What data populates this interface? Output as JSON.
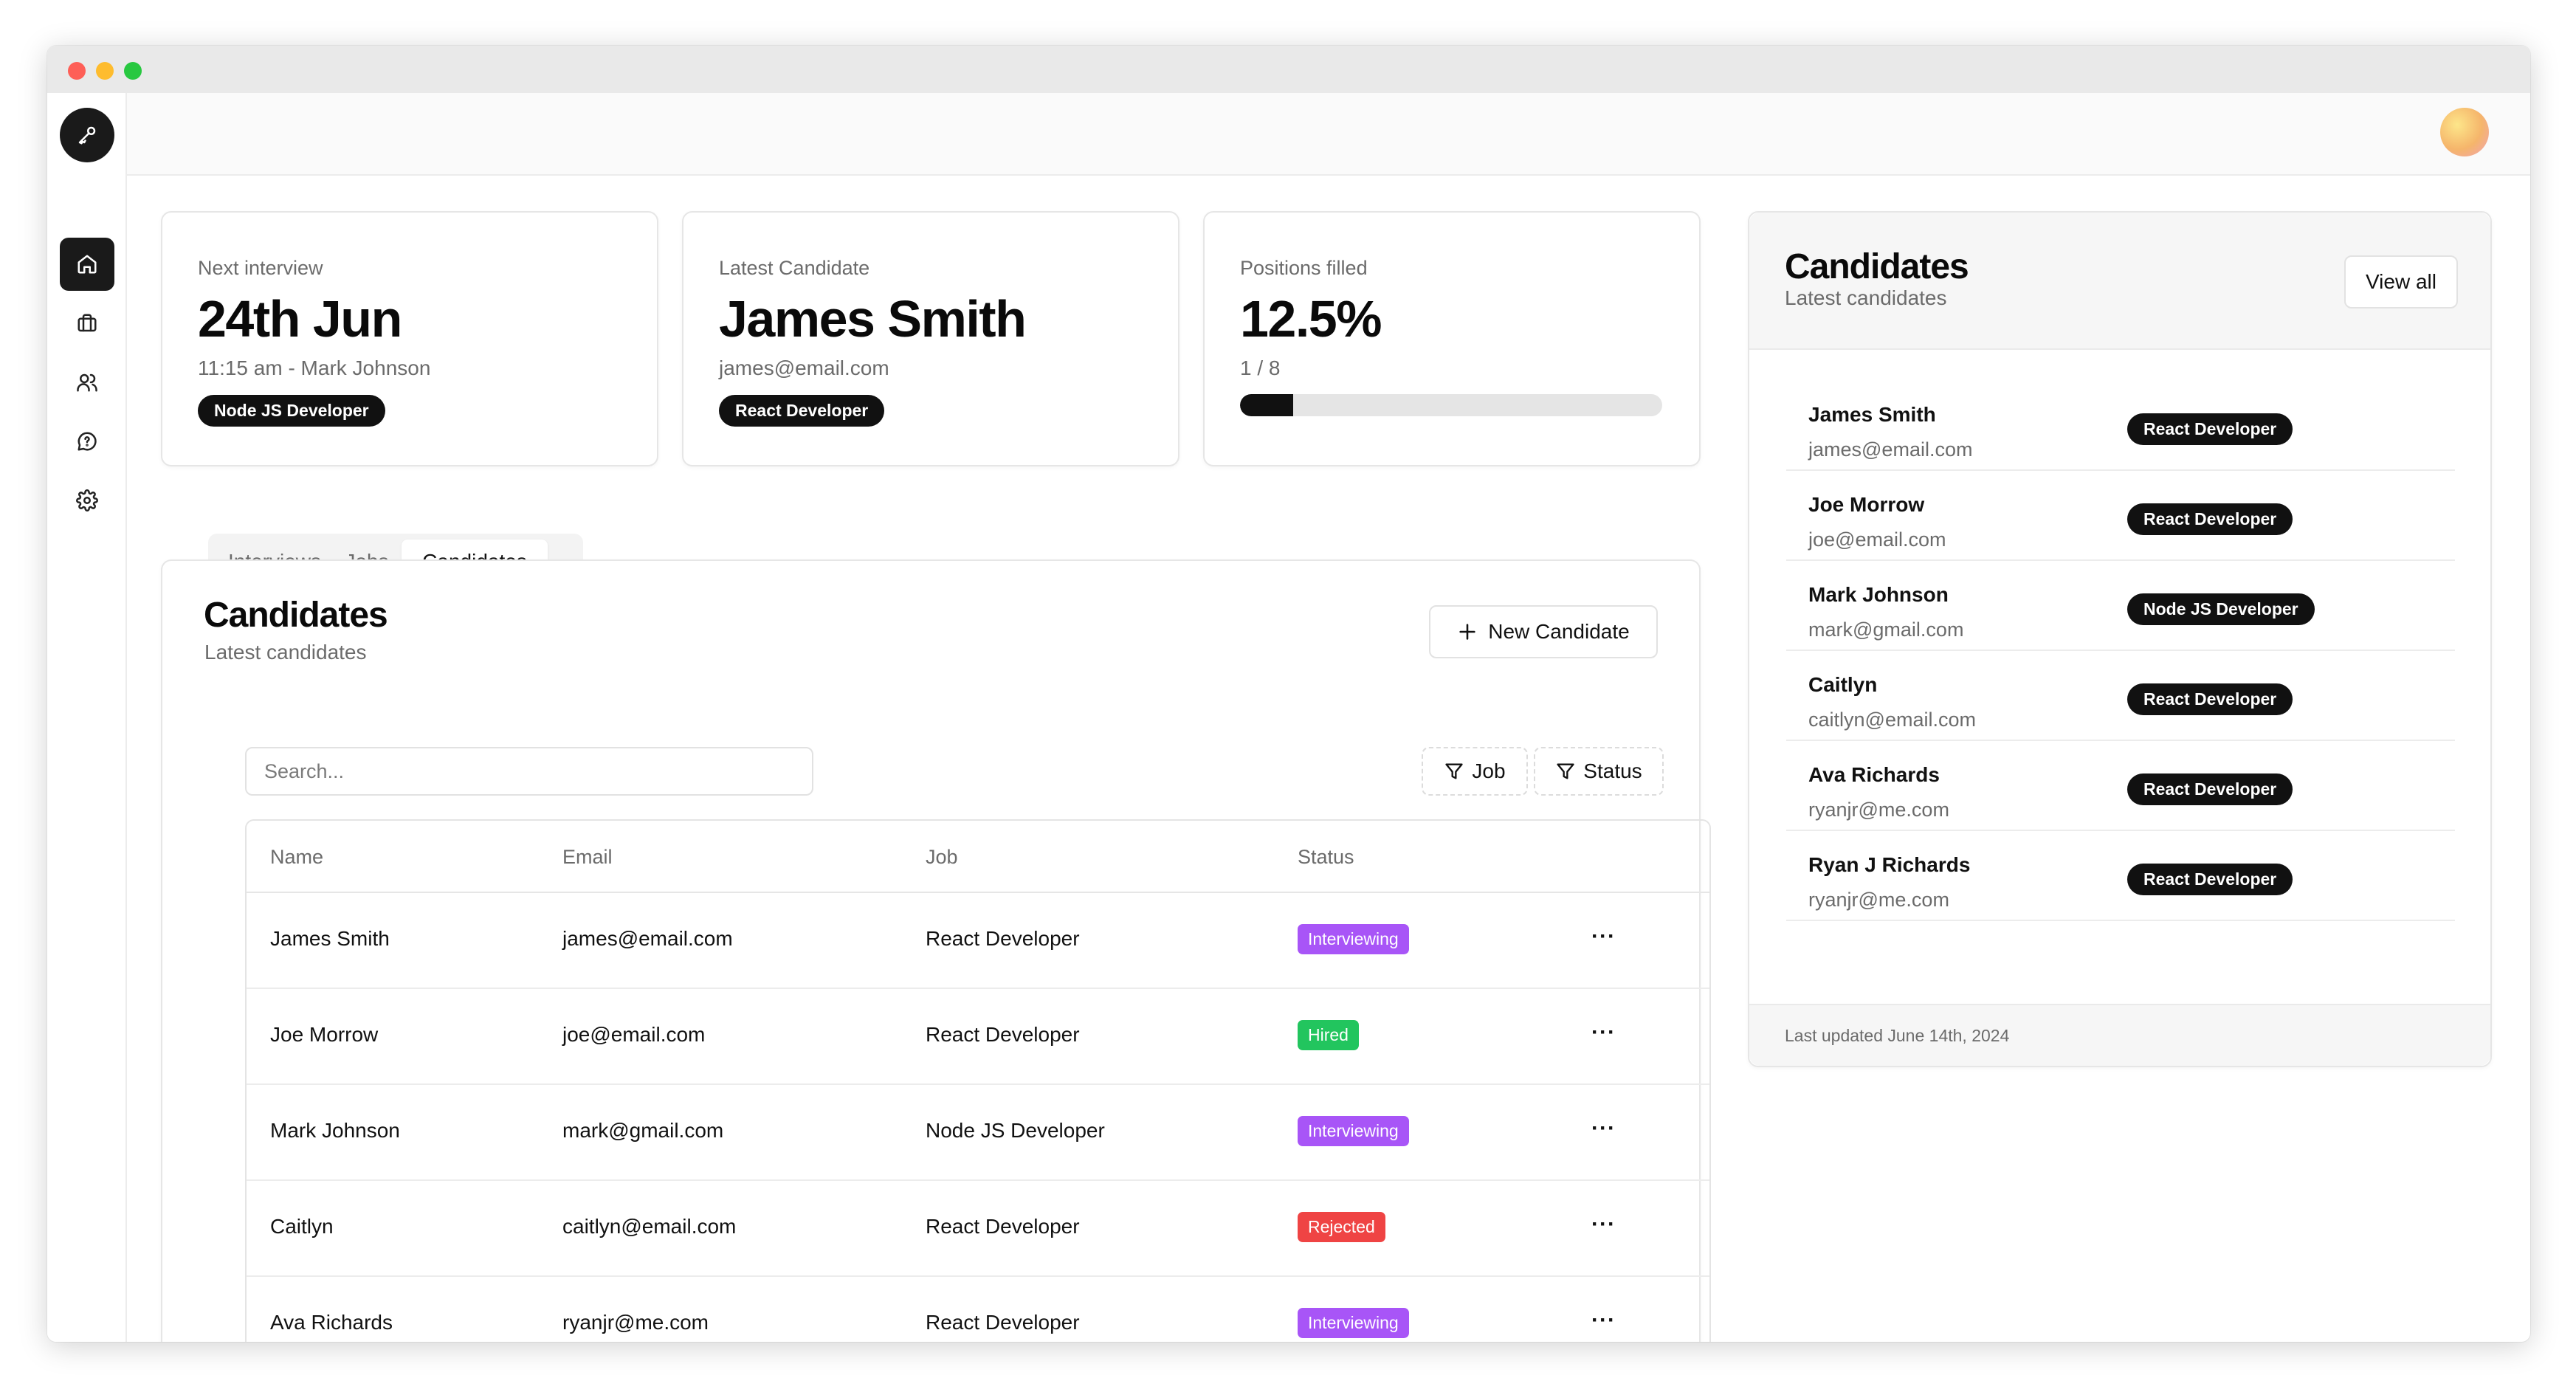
{
  "window": {
    "controls": [
      "close",
      "minimize",
      "maximize"
    ]
  },
  "sidebar": {
    "logo_icon": "key-icon",
    "items": [
      {
        "icon": "home-icon",
        "active": true
      },
      {
        "icon": "briefcase-icon",
        "active": false
      },
      {
        "icon": "users-icon",
        "active": false
      },
      {
        "icon": "chat-icon",
        "active": false
      },
      {
        "icon": "gear-icon",
        "active": false
      }
    ]
  },
  "stats": {
    "next_interview": {
      "label": "Next interview",
      "value": "24th Jun",
      "sub": "11:15 am - Mark Johnson",
      "pill": "Node JS Developer"
    },
    "latest_candidate": {
      "label": "Latest Candidate",
      "value": "James Smith",
      "sub": "james@email.com",
      "pill": "React Developer"
    },
    "positions_filled": {
      "label": "Positions filled",
      "value": "12.5%",
      "sub": "1 / 8",
      "progress": 0.125
    }
  },
  "tabs": [
    {
      "label": "Interviews",
      "active": false
    },
    {
      "label": "Jobs",
      "active": false
    },
    {
      "label": "Candidates",
      "active": true
    }
  ],
  "main": {
    "title": "Candidates",
    "subtitle": "Latest candidates",
    "new_button": "New Candidate",
    "search_placeholder": "Search...",
    "filters": [
      "Job",
      "Status"
    ],
    "table": {
      "columns": [
        "Name",
        "Email",
        "Job",
        "Status"
      ],
      "rows": [
        {
          "name": "James Smith",
          "email": "james@email.com",
          "job": "React Developer",
          "status": "Interviewing"
        },
        {
          "name": "Joe Morrow",
          "email": "joe@email.com",
          "job": "React Developer",
          "status": "Hired"
        },
        {
          "name": "Mark Johnson",
          "email": "mark@gmail.com",
          "job": "Node JS Developer",
          "status": "Interviewing"
        },
        {
          "name": "Caitlyn",
          "email": "caitlyn@email.com",
          "job": "React Developer",
          "status": "Rejected"
        },
        {
          "name": "Ava Richards",
          "email": "ryanjr@me.com",
          "job": "React Developer",
          "status": "Interviewing"
        }
      ]
    }
  },
  "side_panel": {
    "title": "Candidates",
    "subtitle": "Latest candidates",
    "view_all": "View all",
    "candidates": [
      {
        "name": "James Smith",
        "email": "james@email.com",
        "job": "React Developer"
      },
      {
        "name": "Joe Morrow",
        "email": "joe@email.com",
        "job": "React Developer"
      },
      {
        "name": "Mark Johnson",
        "email": "mark@gmail.com",
        "job": "Node JS Developer"
      },
      {
        "name": "Caitlyn",
        "email": "caitlyn@email.com",
        "job": "React Developer"
      },
      {
        "name": "Ava Richards",
        "email": "ryanjr@me.com",
        "job": "React Developer"
      },
      {
        "name": "Ryan J Richards",
        "email": "ryanjr@me.com",
        "job": "React Developer"
      }
    ],
    "footer": "Last updated June 14th, 2024"
  },
  "colors": {
    "accent": "#111111",
    "status_interviewing": "#a855f7",
    "status_hired": "#22c55e",
    "status_rejected": "#ef4444"
  }
}
